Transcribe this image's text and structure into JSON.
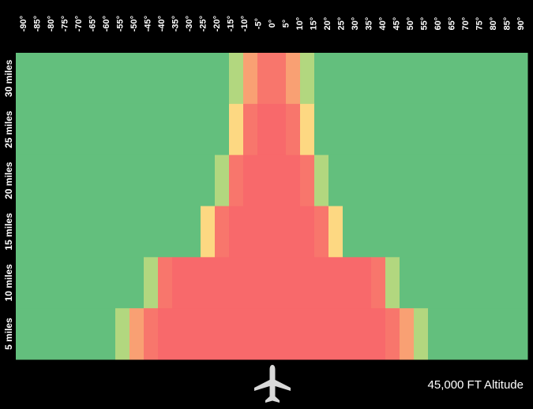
{
  "chart_data": {
    "type": "heatmap",
    "x_ticks": [
      "-90°",
      "-85°",
      "-80°",
      "-75°",
      "-70°",
      "-65°",
      "-60°",
      "-55°",
      "-50°",
      "-45°",
      "-40°",
      "-35°",
      "-30°",
      "-25°",
      "-20°",
      "-15°",
      "-10°",
      "-5°",
      "0°",
      "5°",
      "10°",
      "15°",
      "20°",
      "25°",
      "30°",
      "35°",
      "40°",
      "45°",
      "50°",
      "55°",
      "60°",
      "65°",
      "70°",
      "75°",
      "80°",
      "85°",
      "90°"
    ],
    "y_ticks": [
      "30 miles",
      "25 miles",
      "20 miles",
      "15 miles",
      "10 miles",
      "5 miles"
    ],
    "palette": {
      "safe": "#63bf7d",
      "caution_low": "#b2d77f",
      "caution_mid": "#fdd882",
      "warning": "#f9a073",
      "danger_edge": "#f8766c",
      "danger": "#f8696b"
    },
    "levels": [
      "safe",
      "caution_low",
      "caution_mid",
      "warning",
      "danger"
    ],
    "rows": [
      {
        "label": "30 miles",
        "danger_range": [
          -5,
          5
        ],
        "bands": [
          {
            "from": -15,
            "to": -10,
            "level": "caution_low"
          },
          {
            "from": -10,
            "to": -5,
            "level": "warning"
          },
          {
            "from": 5,
            "to": 10,
            "level": "warning"
          },
          {
            "from": 10,
            "to": 15,
            "level": "caution_low"
          }
        ]
      },
      {
        "label": "25 miles",
        "danger_range": [
          -10,
          10
        ],
        "bands": [
          {
            "from": -15,
            "to": -10,
            "level": "caution_mid"
          },
          {
            "from": 10,
            "to": 15,
            "level": "caution_mid"
          }
        ]
      },
      {
        "label": "20 miles",
        "danger_range": [
          -15,
          15
        ],
        "bands": [
          {
            "from": -20,
            "to": -15,
            "level": "caution_low"
          },
          {
            "from": 15,
            "to": 20,
            "level": "caution_low"
          }
        ]
      },
      {
        "label": "15 miles",
        "danger_range": [
          -20,
          20
        ],
        "bands": [
          {
            "from": -25,
            "to": -20,
            "level": "caution_mid"
          },
          {
            "from": 20,
            "to": 25,
            "level": "caution_mid"
          }
        ]
      },
      {
        "label": "10 miles",
        "danger_range": [
          -40,
          40
        ],
        "bands": [
          {
            "from": -45,
            "to": -40,
            "level": "caution_low"
          },
          {
            "from": 40,
            "to": 45,
            "level": "caution_low"
          }
        ]
      },
      {
        "label": "5 miles",
        "danger_range": [
          -45,
          45
        ],
        "bands": [
          {
            "from": -55,
            "to": -50,
            "level": "caution_low"
          },
          {
            "from": -50,
            "to": -45,
            "level": "warning"
          },
          {
            "from": 45,
            "to": 50,
            "level": "warning"
          },
          {
            "from": 50,
            "to": 55,
            "level": "caution_low"
          }
        ]
      }
    ],
    "x_range": [
      -90,
      90
    ]
  },
  "footer": {
    "altitude_label": "45,000 FT Altitude"
  },
  "icons": {
    "aircraft": "airplane-icon"
  }
}
